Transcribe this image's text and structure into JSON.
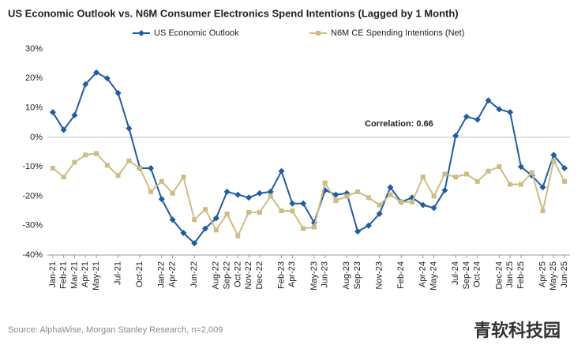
{
  "chart_data": {
    "type": "line",
    "title": "US Economic Outlook vs. N6M Consumer Electronics Spend Intentions (Lagged by 1 Month)",
    "categories": [
      "Jan-21",
      "Feb-21",
      "Mar-21",
      "Apr-21",
      "May-21",
      null,
      "Jul-21",
      null,
      "Oct-21",
      null,
      "Jan-22",
      "Apr-22",
      null,
      "Jun-22",
      null,
      "Aug-22",
      "Sep-22",
      "Oct-22",
      "Nov-22",
      "Dec-22",
      null,
      "Feb-23",
      "Apr-23",
      null,
      "May-23",
      "Jun-23",
      null,
      "Aug-23",
      "Sep-23",
      null,
      "Nov-23",
      null,
      "Feb-24",
      null,
      "Apr-24",
      "May-24",
      null,
      "Jul-24",
      "Sep-24",
      "Oct-24",
      null,
      "Dec-24",
      "Jan-25",
      "Feb-25",
      null,
      "Apr-25",
      "May-25",
      "Jun-25"
    ],
    "series": [
      {
        "name": "US Economic Outlook",
        "color": "#1f5ca6",
        "marker": "diamond",
        "values": [
          8.5,
          2.5,
          7.5,
          18,
          22,
          20,
          15,
          3,
          -10.5,
          -10.5,
          -21,
          -28,
          -32.5,
          -36,
          -31,
          -27.5,
          -18.5,
          -19.5,
          -20.5,
          -19,
          -18.5,
          -11.5,
          -22.5,
          -22.5,
          -29,
          -18,
          -19.5,
          -19,
          -32,
          -30,
          -26,
          -17,
          -22,
          -20.5,
          -23,
          -24,
          -18,
          0.5,
          7,
          6,
          12.5,
          9.5,
          8.5,
          -10,
          -13,
          -17,
          -6,
          -10.5
        ]
      },
      {
        "name": "N6M CE Spending Intentions (Net)",
        "color": "#cdbd82",
        "marker": "square",
        "values": [
          -10.5,
          -13.5,
          -8.5,
          -6,
          -5.5,
          -9.5,
          -13,
          -8,
          -10.5,
          -18.5,
          -15,
          -19,
          -13.5,
          -28,
          -24.5,
          -31.5,
          -26,
          -33.5,
          -25.5,
          -25.5,
          -20,
          -25,
          -25,
          -31,
          -30.5,
          -15.5,
          -21.5,
          -20,
          -18.5,
          -20.5,
          -23,
          -19.5,
          -22,
          -22,
          -13.5,
          -20,
          -12.5,
          -13.5,
          -12.5,
          -15,
          -11.5,
          -10,
          -16,
          -16,
          -12,
          -25,
          -8,
          -15
        ]
      }
    ],
    "ylim": [
      -40,
      30
    ],
    "yticks": [
      {
        "value": -40,
        "label": "-40%"
      },
      {
        "value": -30,
        "label": "-30%"
      },
      {
        "value": -20,
        "label": "-20%"
      },
      {
        "value": -10,
        "label": "-10%"
      },
      {
        "value": 0,
        "label": "0%"
      },
      {
        "value": 10,
        "label": "10%"
      },
      {
        "value": 20,
        "label": "20%"
      },
      {
        "value": 30,
        "label": "30%"
      }
    ],
    "annotation": "Correlation: 0.66",
    "source": "Source: AlphaWise, Morgan Stanley Research, n=2,009",
    "watermark": "青软科技园"
  }
}
